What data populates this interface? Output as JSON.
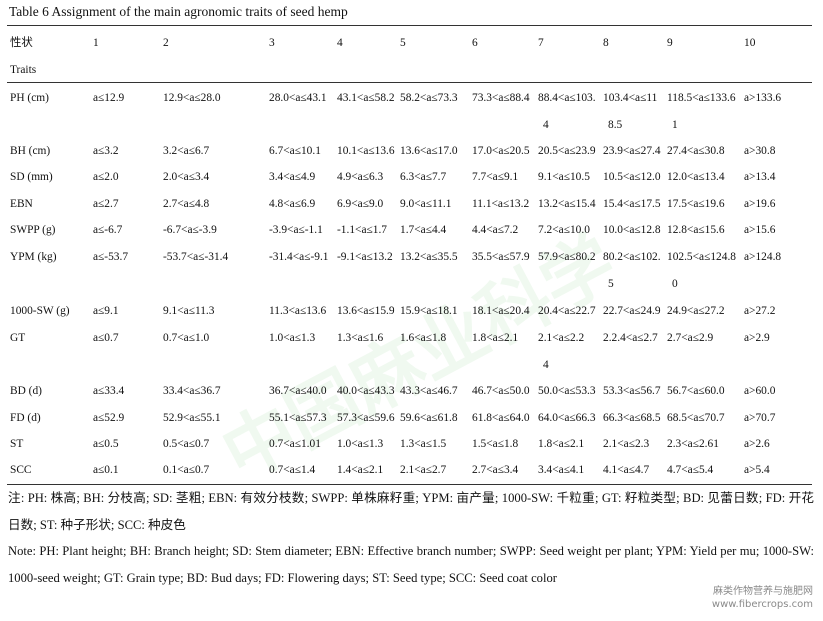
{
  "title": "Table 6 Assignment of the main agronomic traits of seed hemp",
  "header": {
    "trait_cn": "性状",
    "trait_en": "Traits",
    "levels": [
      "1",
      "2",
      "3",
      "4",
      "5",
      "6",
      "7",
      "8",
      "9",
      "10"
    ]
  },
  "rows": [
    {
      "trait": "PH (cm)",
      "cells": [
        "a≤12.9",
        "12.9<a≤28.0",
        "28.0<a≤43.1",
        "43.1<a≤58.2",
        "58.2<a≤73.3",
        "73.3<a≤88.4",
        "88.4<a≤103.",
        "103.4<a≤11",
        "118.5<a≤133.6",
        "a>133.6"
      ],
      "wrap": {
        "6": "4",
        "7": "8.5",
        "8": "1"
      }
    },
    {
      "trait": "BH (cm)",
      "cells": [
        "a≤3.2",
        "3.2<a≤6.7",
        "6.7<a≤10.1",
        "10.1<a≤13.6",
        "13.6<a≤17.0",
        "17.0<a≤20.5",
        "20.5<a≤23.9",
        "23.9<a≤27.4",
        "27.4<a≤30.8",
        "a>30.8"
      ]
    },
    {
      "trait": "SD (mm)",
      "cells": [
        "a≤2.0",
        "2.0<a≤3.4",
        "3.4<a≤4.9",
        "4.9<a≤6.3",
        "6.3<a≤7.7",
        "7.7<a≤9.1",
        "9.1<a≤10.5",
        "10.5<a≤12.0",
        "12.0<a≤13.4",
        "a>13.4"
      ]
    },
    {
      "trait": "EBN",
      "cells": [
        "a≤2.7",
        "2.7<a≤4.8",
        "4.8<a≤6.9",
        "6.9<a≤9.0",
        "9.0<a≤11.1",
        "11.1<a≤13.2",
        "13.2<a≤15.4",
        "15.4<a≤17.5",
        "17.5<a≤19.6",
        "a>19.6"
      ]
    },
    {
      "trait": "SWPP (g)",
      "cells": [
        "a≤-6.7",
        "-6.7<a≤-3.9",
        "-3.9<a≤-1.1",
        "-1.1<a≤1.7",
        "1.7<a≤4.4",
        "4.4<a≤7.2",
        "7.2<a≤10.0",
        "10.0<a≤12.8",
        "12.8<a≤15.6",
        "a>15.6"
      ]
    },
    {
      "trait": "YPM (kg)",
      "cells": [
        "a≤-53.7",
        "-53.7<a≤-31.4",
        "-31.4<a≤-9.1",
        "-9.1<a≤13.2",
        "13.2<a≤35.5",
        "35.5<a≤57.9",
        "57.9<a≤80.2",
        "80.2<a≤102.",
        "102.5<a≤124.8",
        "a>124.8"
      ],
      "wrap": {
        "7": "5",
        "8": "0"
      }
    },
    {
      "trait": "1000-SW (g)",
      "cells": [
        "a≤9.1",
        "9.1<a≤11.3",
        "11.3<a≤13.6",
        "13.6<a≤15.9",
        "15.9<a≤18.1",
        "18.1<a≤20.4",
        "20.4<a≤22.7",
        "22.7<a≤24.9",
        "24.9<a≤27.2",
        "a>27.2"
      ]
    },
    {
      "trait": "GT",
      "cells": [
        "a≤0.7",
        "0.7<a≤1.0",
        "1.0<a≤1.3",
        "1.3<a≤1.6",
        "1.6<a≤1.8",
        "1.8<a≤2.1",
        "2.1<a≤2.2",
        "2.2.4<a≤2.7",
        "2.7<a≤2.9",
        "a>2.9"
      ],
      "wrap": {
        "6": "4"
      }
    },
    {
      "trait": "BD (d)",
      "cells": [
        "a≤33.4",
        "33.4<a≤36.7",
        "36.7<a≤40.0",
        "40.0<a≤43.3",
        "43.3<a≤46.7",
        "46.7<a≤50.0",
        "50.0<a≤53.3",
        "53.3<a≤56.7",
        "56.7<a≤60.0",
        "a>60.0"
      ]
    },
    {
      "trait": "FD (d)",
      "cells": [
        "a≤52.9",
        "52.9<a≤55.1",
        "55.1<a≤57.3",
        "57.3<a≤59.6",
        "59.6<a≤61.8",
        "61.8<a≤64.0",
        "64.0<a≤66.3",
        "66.3<a≤68.5",
        "68.5<a≤70.7",
        "a>70.7"
      ]
    },
    {
      "trait": "ST",
      "cells": [
        "a≤0.5",
        "0.5<a≤0.7",
        "0.7<a≤1.01",
        "1.0<a≤1.3",
        "1.3<a≤1.5",
        "1.5<a≤1.8",
        "1.8<a≤2.1",
        "2.1<a≤2.3",
        "2.3<a≤2.61",
        "a>2.6"
      ]
    },
    {
      "trait": "SCC",
      "cells": [
        "a≤0.1",
        "0.1<a≤0.7",
        "0.7<a≤1.4",
        "1.4<a≤2.1",
        "2.1<a≤2.7",
        "2.7<a≤3.4",
        "3.4<a≤4.1",
        "4.1<a≤4.7",
        "4.7<a≤5.4",
        "a>5.4"
      ]
    }
  ],
  "note_cn": "注: PH: 株高; BH: 分枝高; SD: 茎粗; EBN: 有效分枝数; SWPP: 单株麻籽重; YPM: 亩产量; 1000-SW: 千粒重; GT: 籽粒类型; BD: 见蕾日数; FD: 开花日数; ST: 种子形状; SCC: 种皮色",
  "note_en": "Note: PH: Plant height; BH: Branch height; SD: Stem diameter; EBN: Effective branch number; SWPP: Seed weight per plant; YPM: Yield per mu; 1000-SW: 1000-seed weight; GT: Grain type; BD: Bud days; FD: Flowering days; ST: Seed type; SCC: Seed coat color",
  "watermark": {
    "main": "中国麻业科学",
    "corner_cn": "麻类作物营养与施肥网",
    "corner_url": "www.fibercrops.com"
  }
}
